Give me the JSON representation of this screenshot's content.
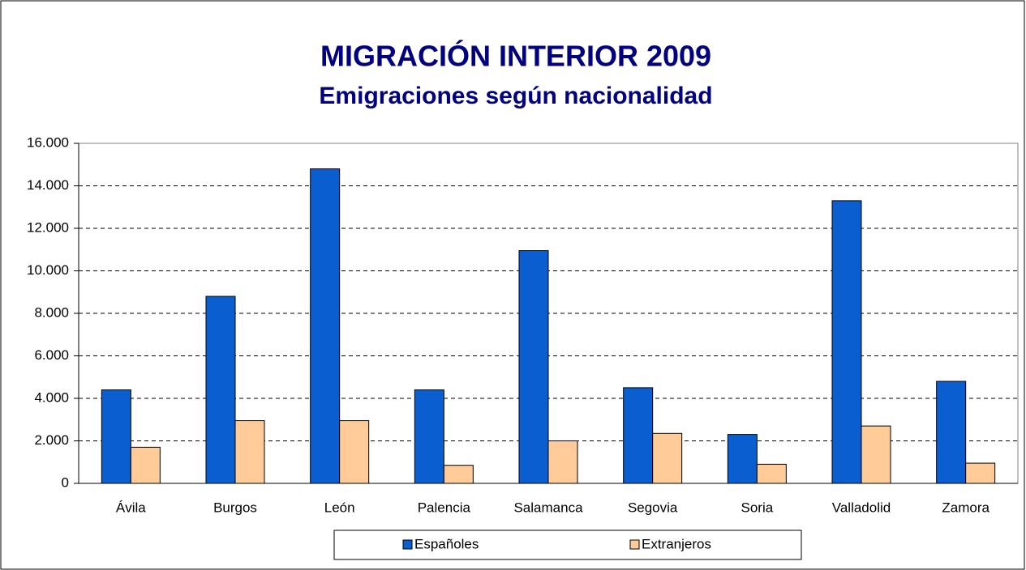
{
  "chart_data": {
    "type": "bar",
    "title": "MIGRACIÓN INTERIOR 2009",
    "subtitle": "Emigraciones según nacionalidad",
    "categories": [
      "Ávila",
      "Burgos",
      "León",
      "Palencia",
      "Salamanca",
      "Segovia",
      "Soria",
      "Valladolid",
      "Zamora"
    ],
    "series": [
      {
        "name": "Españoles",
        "color": "#0b5ed0",
        "values": [
          4400,
          8800,
          14800,
          4400,
          10950,
          4500,
          2300,
          13300,
          4800
        ]
      },
      {
        "name": "Extranjeros",
        "color": "#ffcc99",
        "values": [
          1700,
          2950,
          2950,
          850,
          2000,
          2350,
          900,
          2700,
          950
        ]
      }
    ],
    "ylim": [
      0,
      16000
    ],
    "yticks": [
      0,
      {
        "value": 2000,
        "label": "2.000"
      },
      {
        "value": 4000,
        "label": "4.000"
      },
      {
        "value": 6000,
        "label": "6.000"
      },
      {
        "value": 8000,
        "label": "8.000"
      },
      {
        "value": 10000,
        "label": "10.000"
      },
      {
        "value": 12000,
        "label": "12.000"
      },
      {
        "value": 14000,
        "label": "14.000"
      },
      {
        "value": 16000,
        "label": "16.000"
      }
    ],
    "grid": true,
    "legend": "bottom"
  }
}
